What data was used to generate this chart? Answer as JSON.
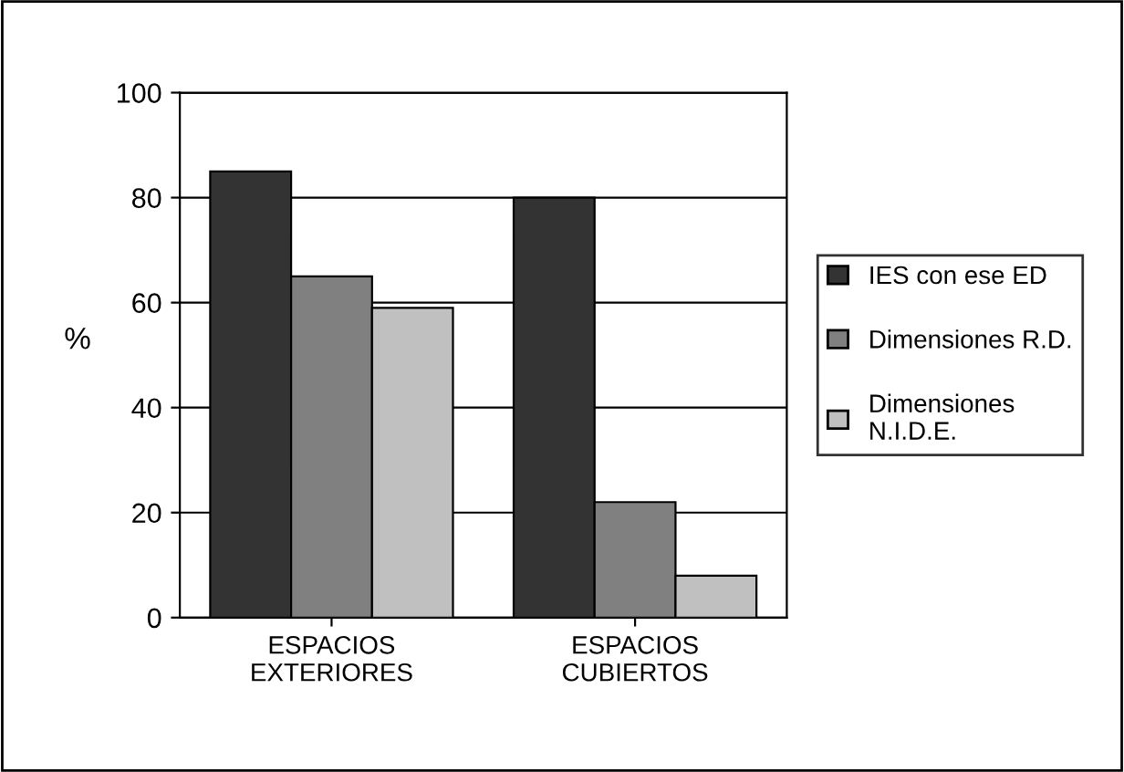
{
  "chart_data": {
    "type": "bar",
    "ylabel": "%",
    "categories": [
      "ESPACIOS\nEXTERIORES",
      "ESPACIOS\nCUBIERTOS"
    ],
    "series": [
      {
        "name": "IES con ese ED",
        "color": "#333333",
        "values": [
          85,
          80
        ]
      },
      {
        "name": "Dimensiones R.D.",
        "color": "#808080",
        "values": [
          65,
          22
        ]
      },
      {
        "name": "Dimensiones\nN.I.D.E.",
        "color": "#c0c0c0",
        "values": [
          59,
          8
        ]
      }
    ],
    "ylim": [
      0,
      100
    ],
    "yticks": [
      0,
      20,
      40,
      60,
      80,
      100
    ],
    "grid": "y",
    "legend": "right"
  }
}
